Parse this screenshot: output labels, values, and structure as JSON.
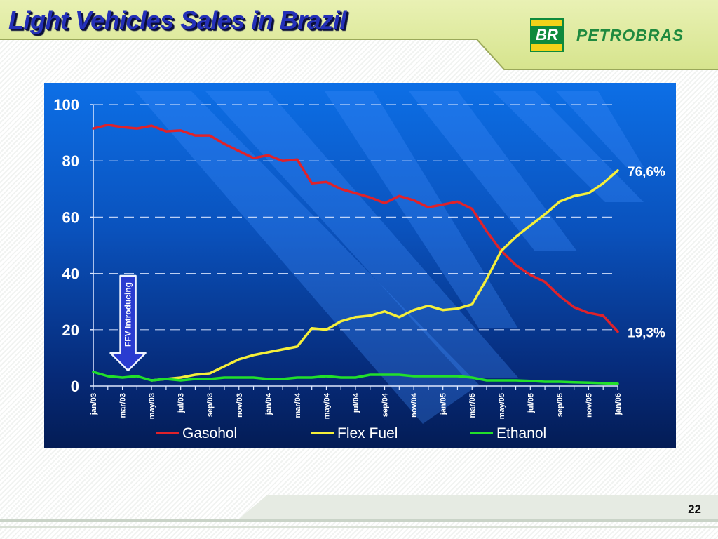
{
  "slide": {
    "title": "Light Vehicles Sales in Brazil",
    "page_number": "22"
  },
  "logo": {
    "badge_text": "BR",
    "wordmark": "PETROBRAS",
    "colors": {
      "green": "#0f8a3c",
      "yellow": "#f2d21a"
    }
  },
  "annotation": {
    "text": "FFV Introducing",
    "icon": "down-arrow-icon",
    "month_index": 2
  },
  "chart_data": {
    "type": "line",
    "xlabel": "",
    "ylabel": "",
    "ylim": [
      0,
      100
    ],
    "yticks": [
      0,
      20,
      40,
      60,
      80,
      100
    ],
    "grid": "horizontal dashed",
    "legend_position": "bottom",
    "x_count": 37,
    "xtick_labels": [
      {
        "index": 0,
        "label": "jan/03"
      },
      {
        "index": 2,
        "label": "mar/03"
      },
      {
        "index": 4,
        "label": "may/03"
      },
      {
        "index": 6,
        "label": "jul/03"
      },
      {
        "index": 8,
        "label": "sep/03"
      },
      {
        "index": 10,
        "label": "nov/03"
      },
      {
        "index": 12,
        "label": "jan/04"
      },
      {
        "index": 14,
        "label": "mar/04"
      },
      {
        "index": 16,
        "label": "may/04"
      },
      {
        "index": 18,
        "label": "jul/04"
      },
      {
        "index": 20,
        "label": "sep/04"
      },
      {
        "index": 22,
        "label": "nov/04"
      },
      {
        "index": 24,
        "label": "jan/05"
      },
      {
        "index": 26,
        "label": "mar/05"
      },
      {
        "index": 28,
        "label": "may/05"
      },
      {
        "index": 30,
        "label": "jul/05"
      },
      {
        "index": 32,
        "label": "sep/05"
      },
      {
        "index": 34,
        "label": "nov/05"
      },
      {
        "index": 36,
        "label": "jan/06"
      }
    ],
    "series": [
      {
        "name": "Gasohol",
        "color": "#e0222a",
        "end_label": "19,3%",
        "values": [
          91.5,
          92.8,
          92.0,
          91.5,
          92.5,
          90.5,
          90.8,
          89.0,
          89.0,
          86.0,
          83.5,
          81.0,
          82.0,
          80.0,
          80.5,
          72.0,
          72.5,
          70.0,
          68.5,
          67.0,
          65.0,
          67.5,
          66.0,
          63.5,
          64.5,
          65.5,
          63.0,
          55.0,
          48.0,
          43.0,
          39.5,
          37.0,
          32.0,
          28.0,
          26.0,
          25.0,
          19.3
        ]
      },
      {
        "name": "Flex Fuel",
        "color": "#f5ef3a",
        "end_label": "76,6%",
        "values": [
          null,
          null,
          null,
          null,
          2.0,
          2.5,
          3.0,
          4.0,
          4.5,
          7.0,
          9.5,
          11.0,
          12.0,
          13.0,
          14.0,
          20.5,
          20.0,
          23.0,
          24.5,
          25.0,
          26.5,
          24.5,
          27.0,
          28.5,
          27.0,
          27.5,
          29.0,
          38.0,
          48.0,
          53.0,
          57.0,
          61.0,
          65.5,
          67.5,
          68.5,
          72.0,
          76.6
        ]
      },
      {
        "name": "Ethanol",
        "color": "#22e02a",
        "end_label": "",
        "values": [
          5.0,
          3.5,
          3.0,
          3.5,
          2.0,
          2.5,
          2.0,
          2.5,
          2.5,
          3.0,
          3.0,
          3.0,
          2.5,
          2.5,
          3.0,
          3.0,
          3.5,
          3.0,
          3.0,
          4.0,
          4.0,
          4.0,
          3.5,
          3.5,
          3.5,
          3.5,
          3.0,
          2.0,
          2.0,
          2.0,
          1.8,
          1.5,
          1.5,
          1.3,
          1.2,
          1.0,
          0.8
        ]
      }
    ]
  }
}
